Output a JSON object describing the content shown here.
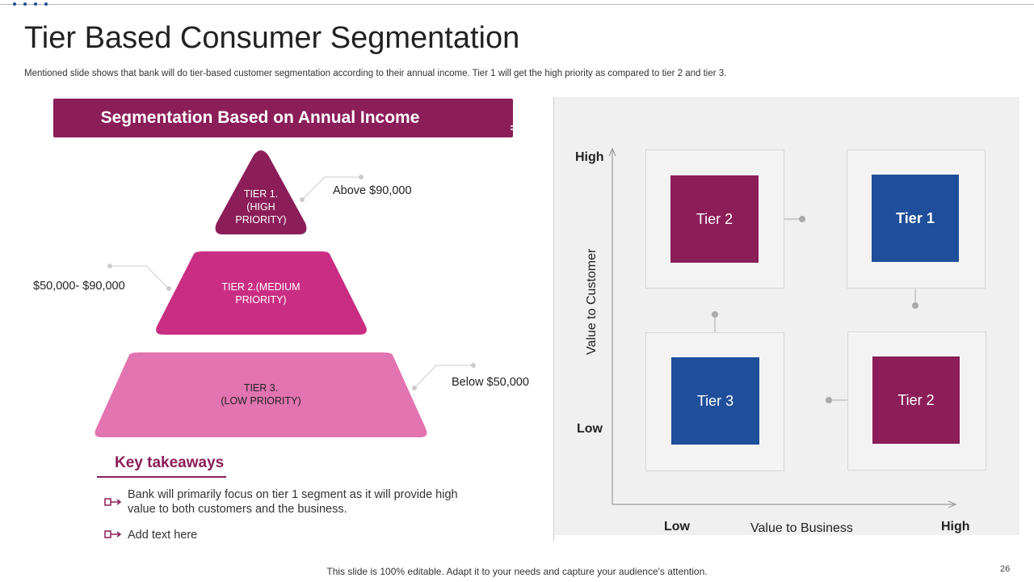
{
  "slide": {
    "title": "Tier Based Consumer Segmentation",
    "subtitle": "Mentioned slide shows that bank will do tier-based customer segmentation according to their annual income. Tier 1 will get the high priority as compared to tier 2 and tier 3.",
    "footer": "This slide is 100% editable. Adapt it to your needs and capture your audience's attention.",
    "page_number": "26"
  },
  "left": {
    "banner_title": "Segmentation Based on Annual Income",
    "banner_icon": "segmented-circle-hand-icon",
    "pyramid": [
      {
        "line1": "TIER 1.",
        "line2": "(HIGH",
        "line3": "PRIORITY)",
        "range": "Above $90,000",
        "color": "#8b1d59"
      },
      {
        "line1": "TIER 2.(MEDIUM",
        "line2": "PRIORITY)",
        "range": "$50,000- $90,000",
        "color": "#c92e83"
      },
      {
        "line1": "TIER 3.",
        "line2": "(LOW PRIORITY)",
        "range": "Below $50,000",
        "color": "#e274b1"
      }
    ],
    "takeaways": {
      "title": "Key takeaways",
      "bullets": [
        {
          "line1": "Bank will primarily focus on tier 1 segment as it will provide high",
          "line2": "value to both customers and the business."
        },
        {
          "line1": "Add text here",
          "line2": ""
        }
      ]
    }
  },
  "matrix": {
    "y_axis_title": "Value to Customer",
    "x_axis_title": "Value to Business",
    "y_high": "High",
    "y_low": "Low",
    "x_low": "Low",
    "x_high": "High",
    "cells": [
      {
        "label": "Tier 2",
        "color": "#8b1d59"
      },
      {
        "label": "Tier 1",
        "color": "#1f4e9a"
      },
      {
        "label": "Tier 3",
        "color": "#1f4e9a"
      },
      {
        "label": "Tier 2",
        "color": "#8b1d59"
      }
    ]
  }
}
